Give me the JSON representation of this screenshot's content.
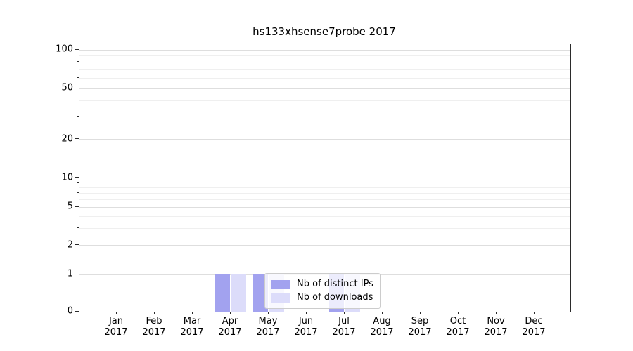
{
  "title": "hs133xhsense7probe 2017",
  "chart_data": {
    "type": "bar",
    "title": "hs133xhsense7probe 2017",
    "categories": [
      "Jan",
      "Feb",
      "Mar",
      "Apr",
      "May",
      "Jun",
      "Jul",
      "Aug",
      "Sep",
      "Oct",
      "Nov",
      "Dec"
    ],
    "xlabel_year": "2017",
    "series": [
      {
        "name": "Nb of distinct IPs",
        "color": "#a2a2ef",
        "values": [
          0,
          0,
          0,
          1,
          1,
          0,
          1,
          0,
          0,
          0,
          0,
          0
        ]
      },
      {
        "name": "Nb of downloads",
        "color": "#dcdcfa",
        "values": [
          0,
          0,
          0,
          1,
          1,
          0,
          1,
          0,
          0,
          0,
          0,
          0
        ]
      }
    ],
    "yticks": [
      0,
      1,
      2,
      5,
      10,
      20,
      50,
      100
    ],
    "minor_yticks": [
      3,
      4,
      6,
      7,
      8,
      9,
      30,
      40,
      60,
      70,
      80,
      90
    ],
    "scale": "symlog",
    "ylim": [
      0,
      110
    ],
    "grid": true,
    "legend": {
      "labels": [
        "Nb of distinct IPs",
        "Nb of downloads"
      ],
      "position": "lower-center"
    },
    "y_scale_anchors": [
      {
        "v": 0,
        "f": 0.0
      },
      {
        "v": 1,
        "f": 0.139
      },
      {
        "v": 10,
        "f": 0.499
      },
      {
        "v": 100,
        "f": 0.979
      }
    ]
  }
}
